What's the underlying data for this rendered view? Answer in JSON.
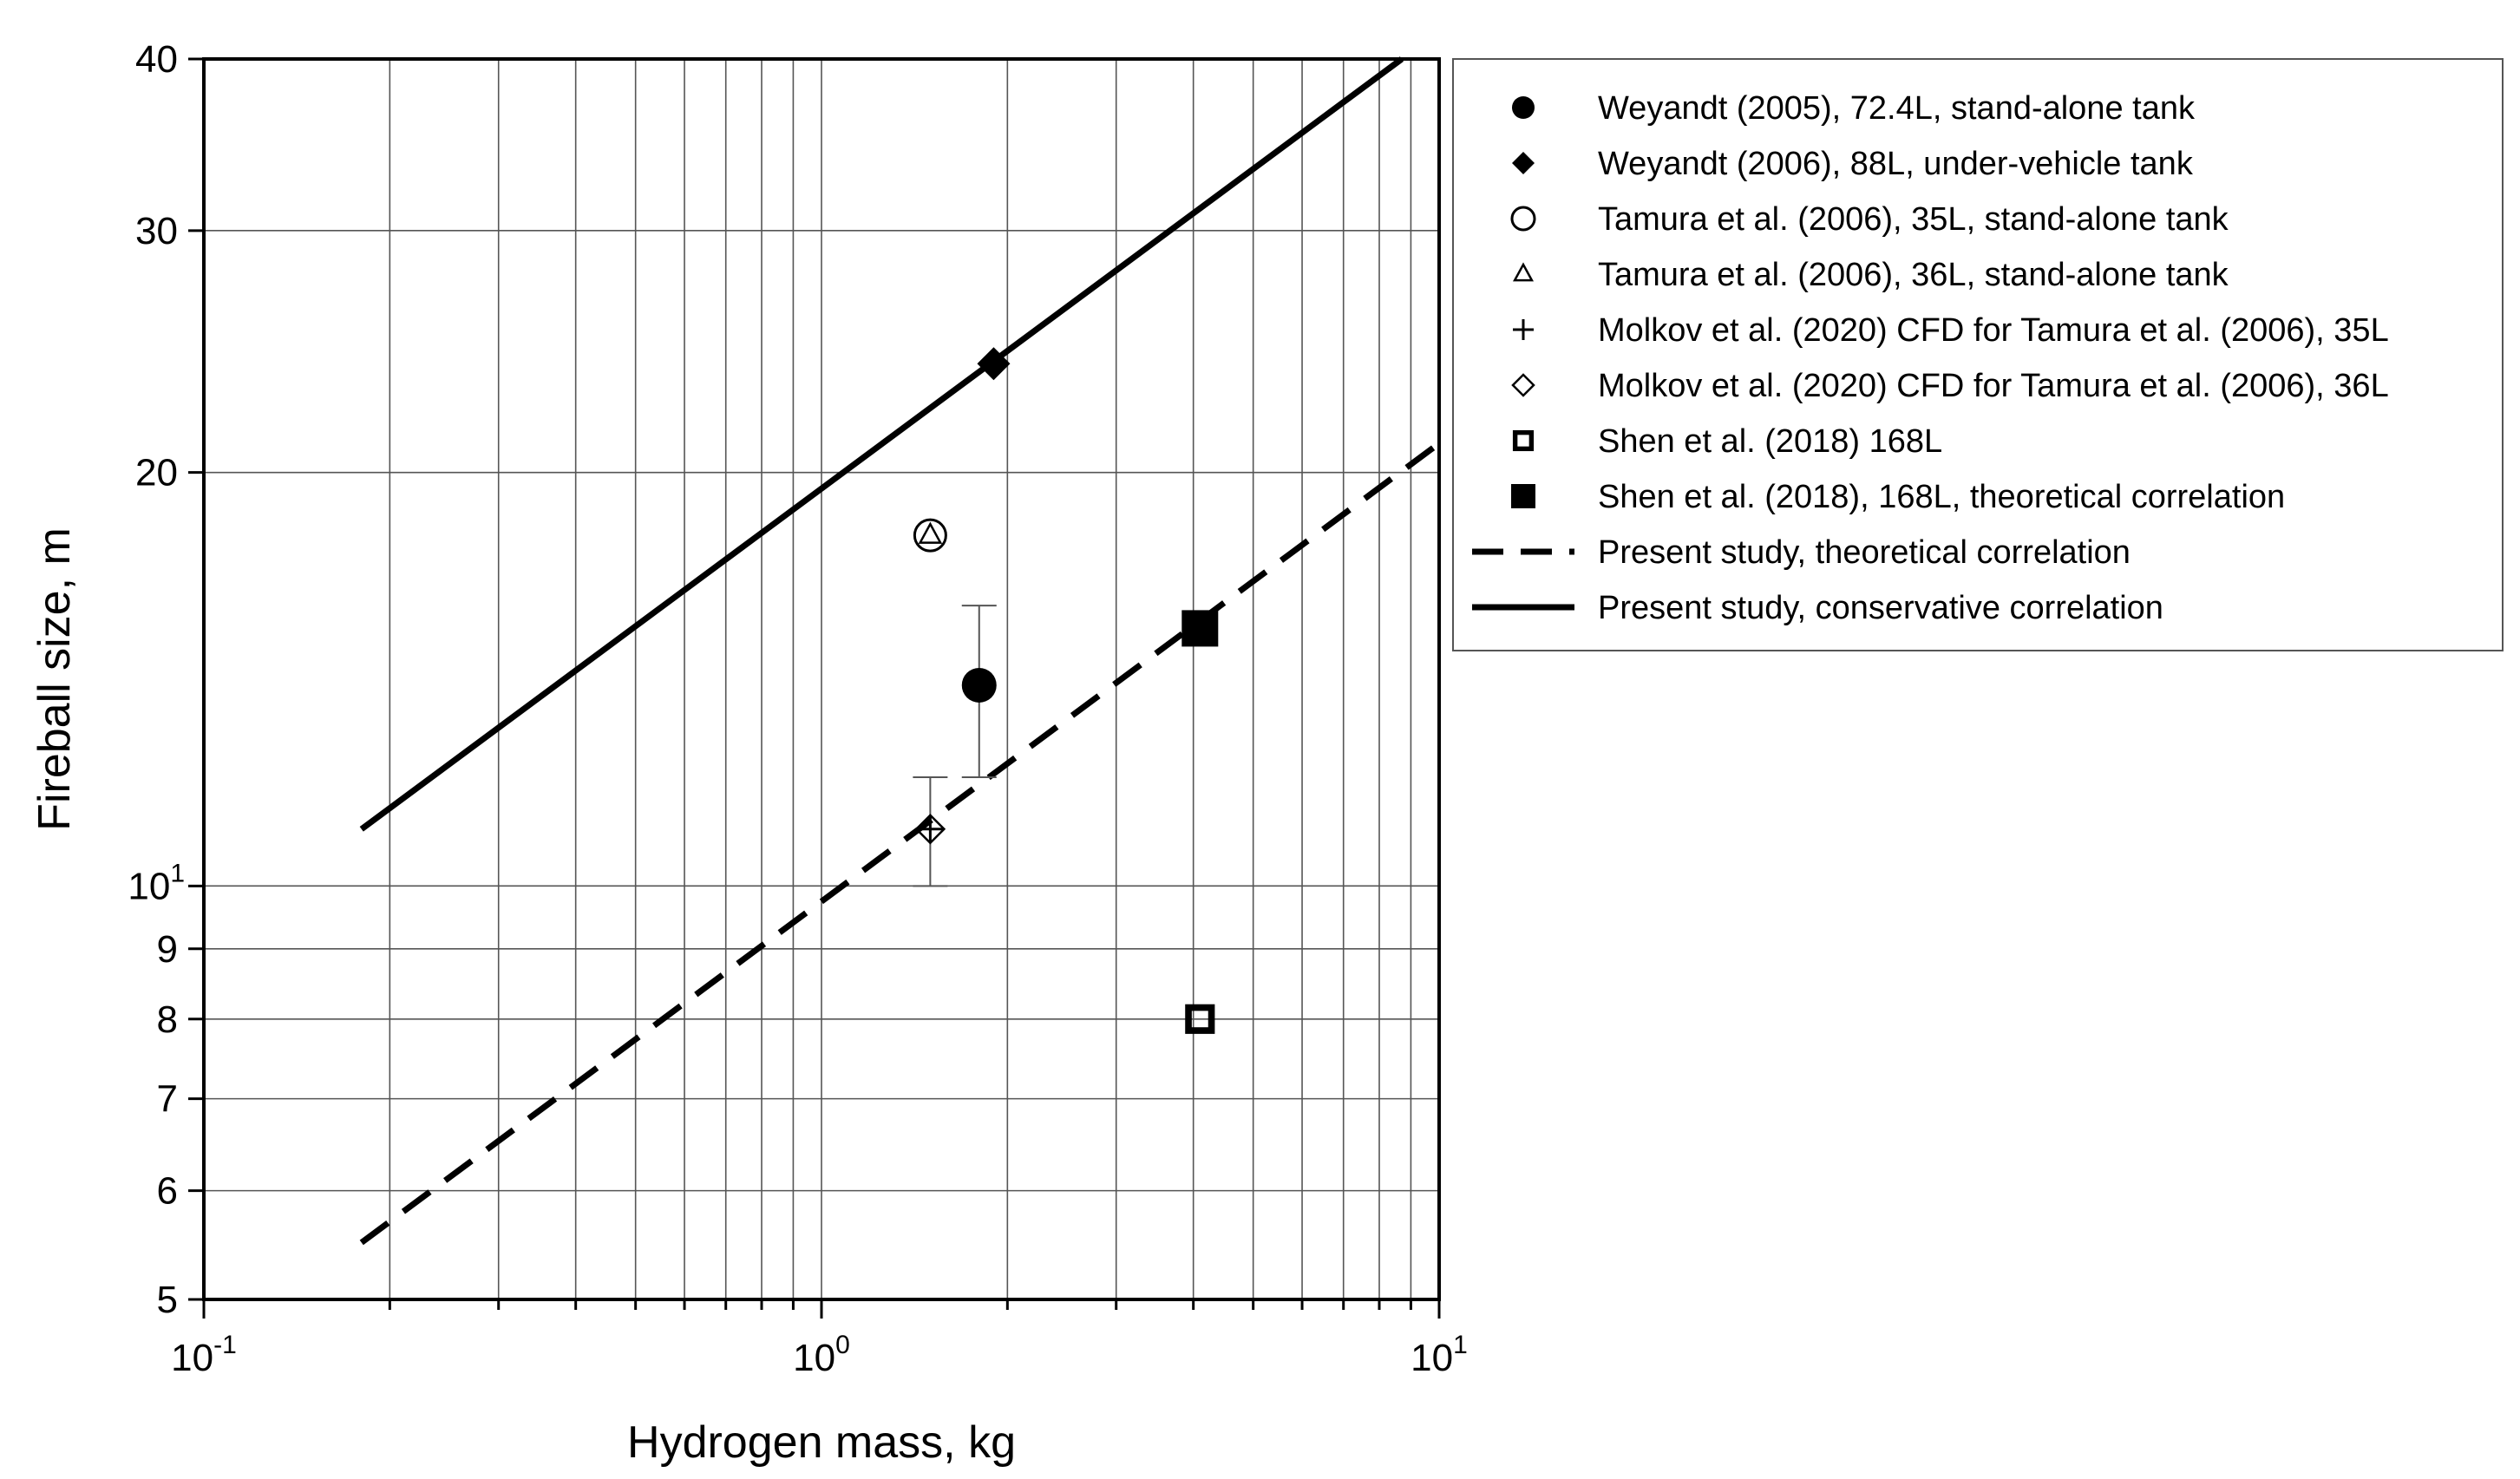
{
  "chart_data": {
    "type": "scatter",
    "xlabel": "Hydrogen mass, kg",
    "ylabel": "Fireball size, m",
    "xscale": "log",
    "yscale": "log",
    "xlim": [
      0.1,
      10
    ],
    "ylim": [
      5,
      40
    ],
    "grid": true,
    "legend_position": "right",
    "x_ticks": [
      {
        "value": 0.1,
        "base": "10",
        "exp": "-1"
      },
      {
        "value": 1,
        "base": "10",
        "exp": "0"
      },
      {
        "value": 10,
        "base": "10",
        "exp": "1"
      }
    ],
    "y_ticks": [
      {
        "value": 5,
        "label": "5"
      },
      {
        "value": 6,
        "label": "6"
      },
      {
        "value": 7,
        "label": "7"
      },
      {
        "value": 8,
        "label": "8"
      },
      {
        "value": 9,
        "label": "9"
      },
      {
        "value": 10,
        "label": "10",
        "base": "10",
        "exp": "1"
      },
      {
        "value": 20,
        "label": "20"
      },
      {
        "value": 30,
        "label": "30"
      },
      {
        "value": 40,
        "label": "40"
      }
    ],
    "series": [
      {
        "name": "Weyandt (2005), 72.4L, stand-alone tank",
        "marker": "filled-circle",
        "points": [
          {
            "x": 1.8,
            "y": 14.0
          }
        ],
        "error_bars": [
          {
            "x": 1.8,
            "low": 12.0,
            "high": 16.0
          }
        ]
      },
      {
        "name": "Weyandt (2006), 88L, under-vehicle tank",
        "marker": "filled-diamond",
        "points": [
          {
            "x": 1.9,
            "y": 24.0
          }
        ]
      },
      {
        "name": "Tamura et al. (2006), 35L, stand-alone tank",
        "marker": "open-circle",
        "points": [
          {
            "x": 1.5,
            "y": 18.0
          }
        ]
      },
      {
        "name": "Tamura et al. (2006), 36L, stand-alone tank",
        "marker": "open-triangle",
        "points": [
          {
            "x": 1.5,
            "y": 18.0
          }
        ]
      },
      {
        "name": "Molkov et al. (2020) CFD for Tamura et al. (2006), 35L",
        "marker": "plus",
        "points": [
          {
            "x": 1.5,
            "y": 11.0
          }
        ],
        "error_bars": [
          {
            "x": 1.5,
            "low": 10.0,
            "high": 12.0
          }
        ]
      },
      {
        "name": "Molkov et al. (2020) CFD for Tamura et al. (2006), 36L",
        "marker": "open-diamond",
        "points": [
          {
            "x": 1.5,
            "y": 11.0
          }
        ]
      },
      {
        "name": "Shen et al. (2018) 168L",
        "marker": "open-square",
        "points": [
          {
            "x": 4.1,
            "y": 8.0
          }
        ]
      },
      {
        "name": "Shen et al. (2018), 168L, theoretical correlation",
        "marker": "filled-square",
        "points": [
          {
            "x": 4.1,
            "y": 15.4
          }
        ]
      },
      {
        "name": "Present study, theoretical correlation",
        "marker": "dashed-line",
        "line": [
          {
            "x": 0.18,
            "y": 5.5
          },
          {
            "x": 10.0,
            "y": 21.0
          }
        ]
      },
      {
        "name": "Present study, conservative correlation",
        "marker": "solid-line",
        "line": [
          {
            "x": 0.18,
            "y": 11.0
          },
          {
            "x": 8.7,
            "y": 40.0
          }
        ]
      }
    ]
  }
}
